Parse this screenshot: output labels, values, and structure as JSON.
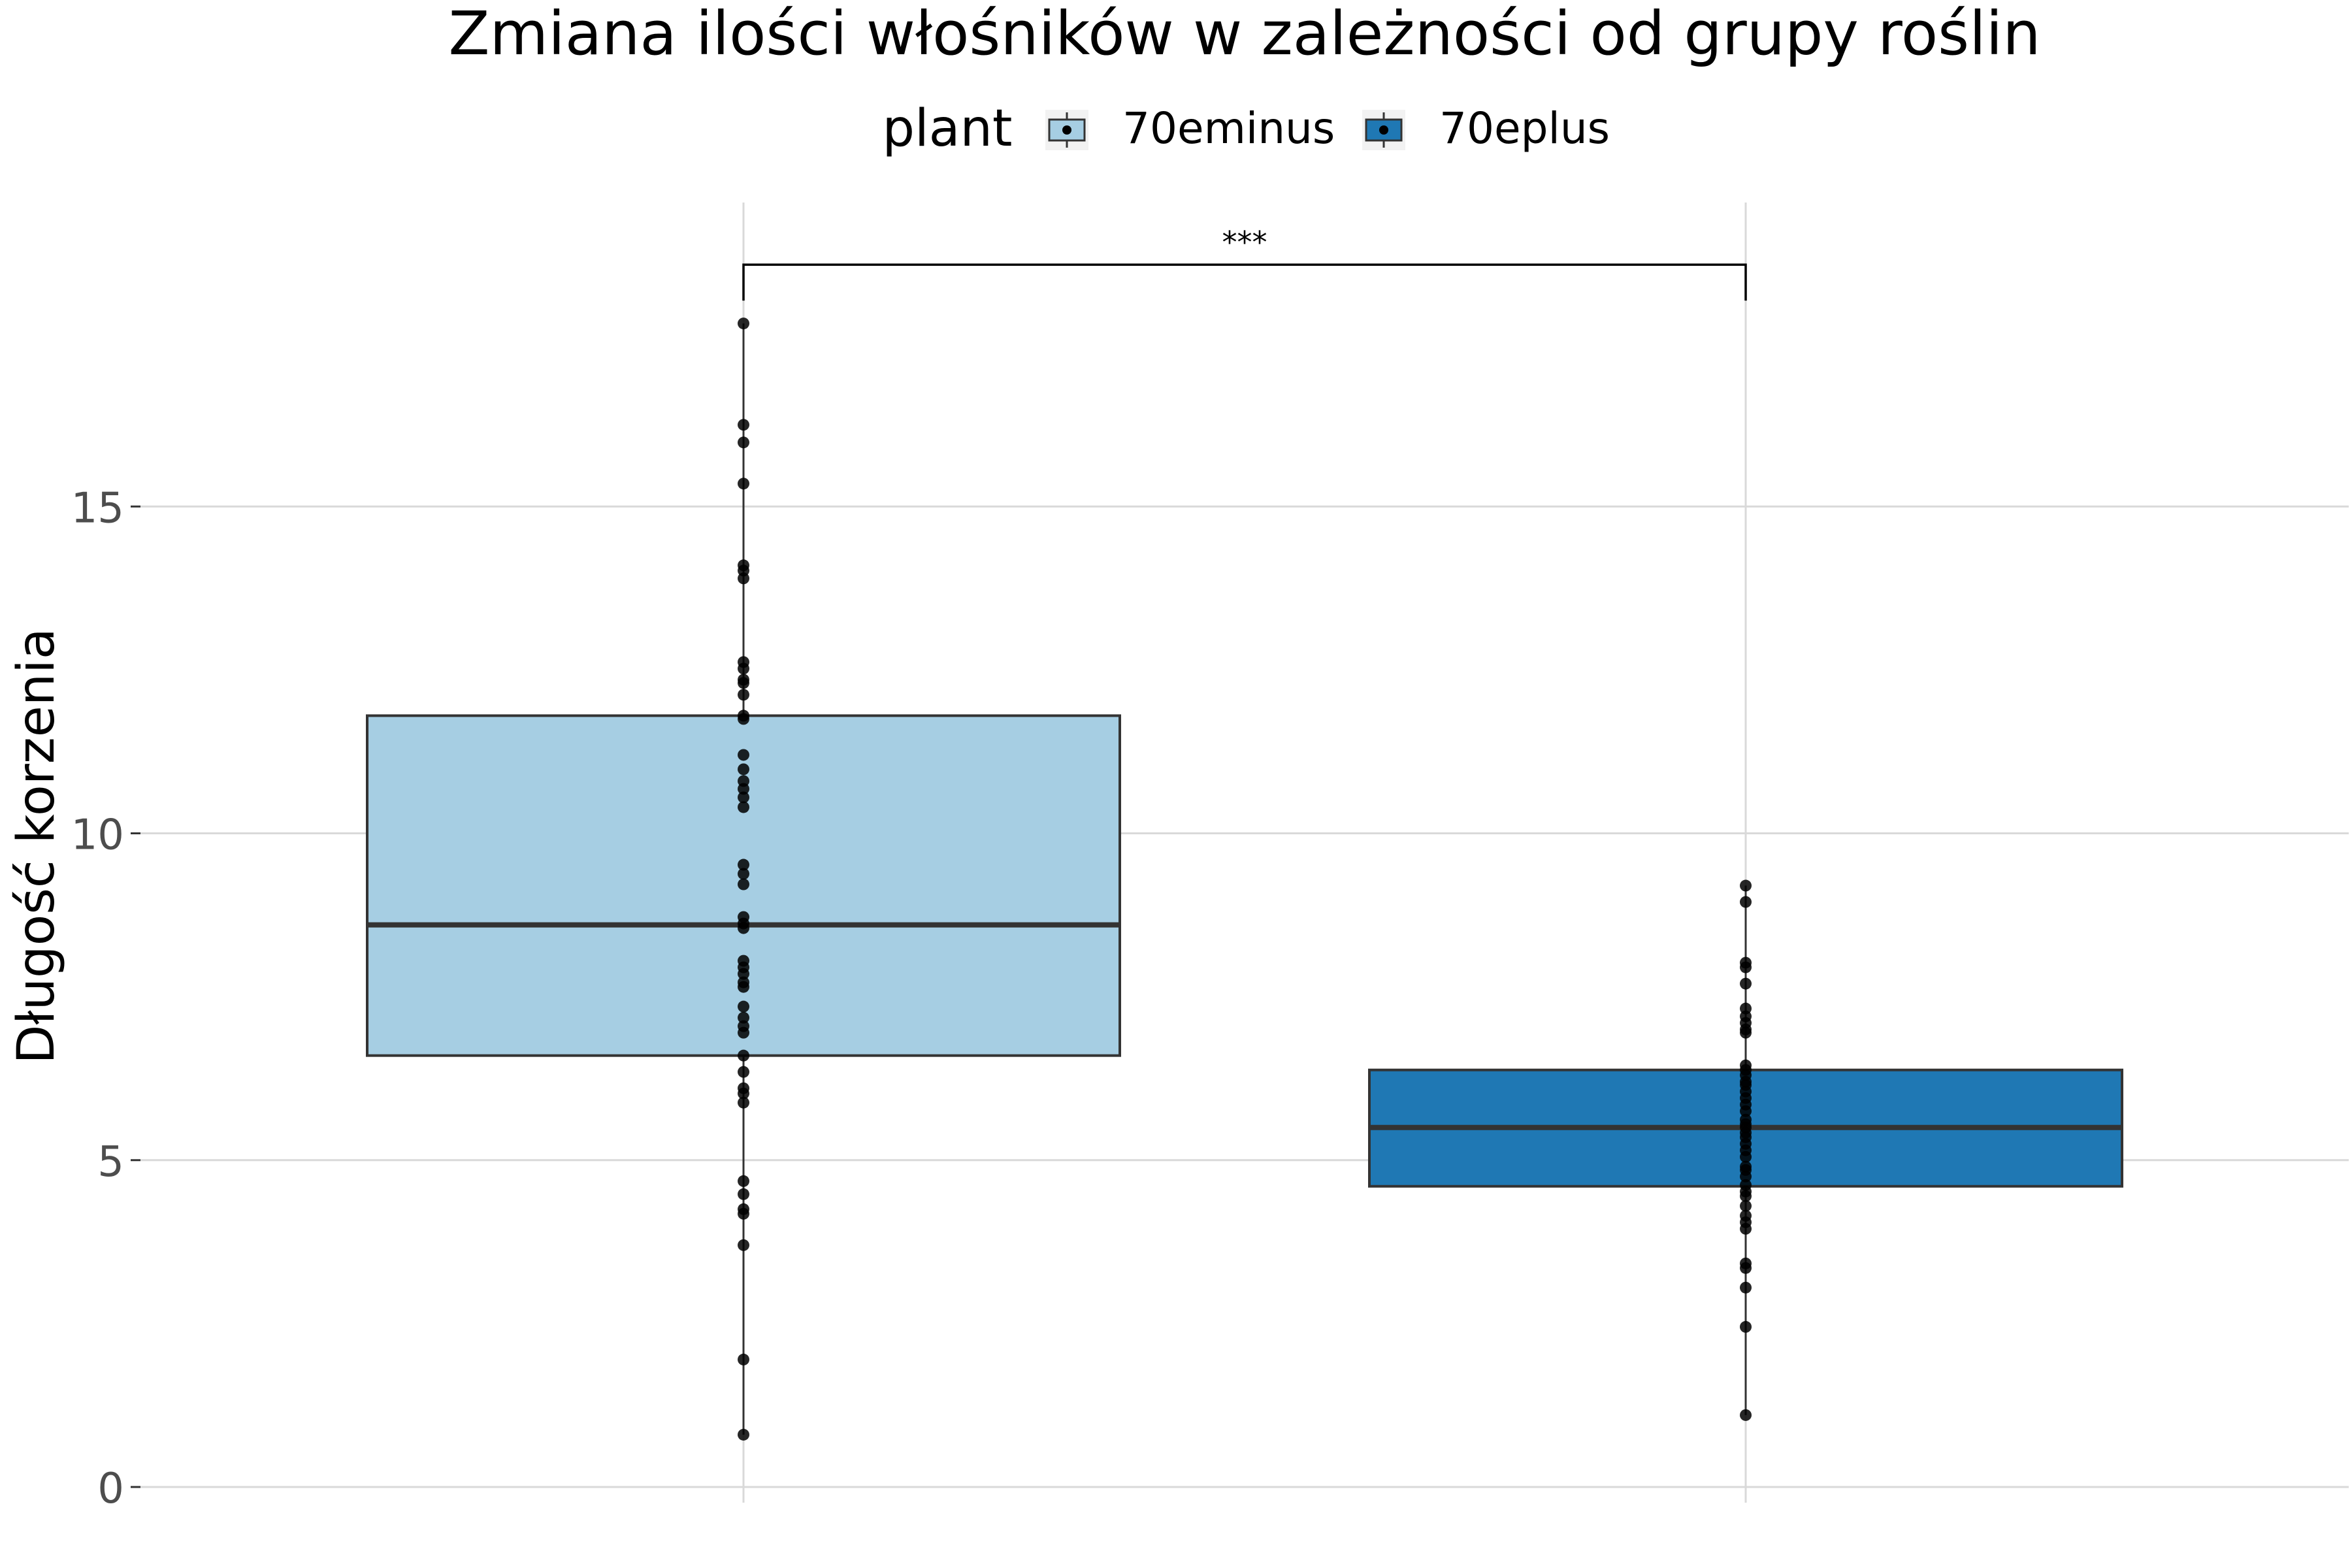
{
  "chart_data": {
    "type": "box",
    "title": "Zmiana ilości włośników w zależności od grupy roślin",
    "xlabel": "",
    "ylabel": "Długość korzenia",
    "ylim": [
      0,
      19.4
    ],
    "y_ticks": [
      0,
      5,
      10,
      15
    ],
    "grid": true,
    "legend": {
      "title": "plant",
      "placement": "top-center",
      "entries": [
        "70eminus",
        "70eplus"
      ]
    },
    "groups": [
      {
        "name": "70eminus",
        "color": "#a6cee3",
        "q1": 6.6,
        "median": 8.6,
        "q3": 11.8,
        "whisker_low": 0.8,
        "whisker_high": 17.8,
        "points": [
          17.8,
          16.25,
          15.98,
          15.35,
          14.1,
          14.02,
          13.9,
          12.62,
          12.52,
          12.35,
          12.3,
          12.12,
          11.8,
          11.75,
          11.2,
          10.98,
          10.8,
          10.68,
          10.55,
          10.4,
          9.52,
          9.38,
          9.22,
          8.72,
          8.62,
          8.55,
          8.05,
          7.95,
          7.85,
          7.72,
          7.65,
          7.35,
          7.18,
          7.05,
          6.95,
          6.6,
          6.35,
          6.1,
          6.02,
          5.88,
          4.68,
          4.48,
          4.25,
          4.18,
          3.7,
          1.95,
          0.8
        ]
      },
      {
        "name": "70eplus",
        "color": "#1f78b4",
        "q1": 4.6,
        "median": 5.5,
        "q3": 6.38,
        "whisker_low": 1.1,
        "whisker_high": 9.2,
        "points": [
          9.2,
          8.95,
          8.02,
          7.95,
          7.7,
          7.32,
          7.2,
          7.1,
          7.0,
          6.95,
          6.45,
          6.38,
          6.3,
          6.2,
          6.15,
          6.05,
          5.95,
          5.85,
          5.75,
          5.62,
          5.55,
          5.5,
          5.42,
          5.35,
          5.25,
          5.15,
          5.05,
          4.9,
          4.85,
          4.75,
          4.62,
          4.52,
          4.45,
          4.3,
          4.15,
          4.05,
          3.95,
          3.42,
          3.35,
          3.05,
          2.45,
          1.1
        ]
      }
    ],
    "annotation": {
      "label": "***",
      "between": [
        "70eminus",
        "70eplus"
      ],
      "y": 18.7
    }
  }
}
